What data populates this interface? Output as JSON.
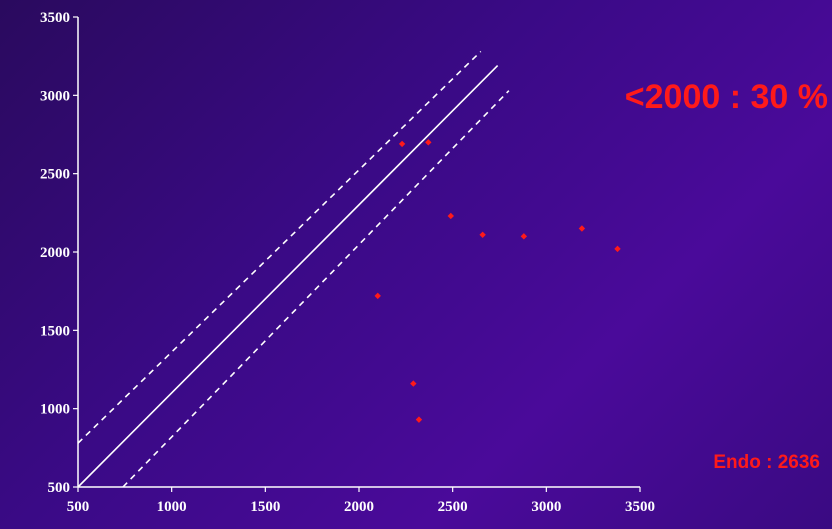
{
  "chart_data": {
    "type": "scatter",
    "title": "",
    "xlabel": "",
    "ylabel": "",
    "xlim": [
      500,
      3500
    ],
    "ylim": [
      500,
      3500
    ],
    "x_ticks": [
      "500",
      "1000",
      "1500",
      "2000",
      "2500",
      "3000",
      "3500"
    ],
    "y_ticks": [
      "500",
      "1000",
      "1500",
      "2000",
      "2500",
      "3000",
      "3500"
    ],
    "grid": false,
    "points": [
      {
        "x": 2230,
        "y": 2690
      },
      {
        "x": 2370,
        "y": 2700
      },
      {
        "x": 2490,
        "y": 2230
      },
      {
        "x": 2660,
        "y": 2110
      },
      {
        "x": 2880,
        "y": 2100
      },
      {
        "x": 3190,
        "y": 2150
      },
      {
        "x": 3380,
        "y": 2020
      },
      {
        "x": 2100,
        "y": 1720
      },
      {
        "x": 2290,
        "y": 1160
      },
      {
        "x": 2320,
        "y": 930
      }
    ],
    "reference_lines": [
      {
        "style": "solid",
        "x": [
          500,
          2740
        ],
        "y": [
          500,
          3190
        ]
      },
      {
        "style": "dashed",
        "x": [
          500,
          2650
        ],
        "y": [
          780,
          3280
        ]
      },
      {
        "style": "dashed",
        "x": [
          740,
          2800
        ],
        "y": [
          500,
          3030
        ]
      }
    ],
    "annotations": [
      "<2000 : 30 %",
      "Endo : 2636"
    ],
    "colors": {
      "points": "#ff1a1a",
      "lines": "#ffffff",
      "axes": "#ffffff",
      "annotation": "#ff1a1a"
    }
  }
}
